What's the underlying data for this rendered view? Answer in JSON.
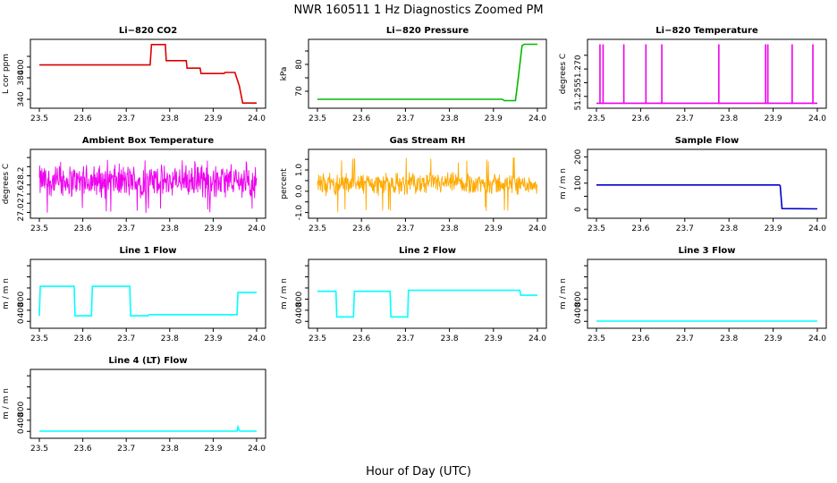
{
  "figure": {
    "title": "NWR  160511  1 Hz Diagnostics Zoomed PM",
    "xlabel": "Hour of Day (UTC)"
  },
  "chart_data": [
    {
      "type": "line",
      "title": "Li−820 CO2",
      "ylabel": "L cor ppm",
      "color": "#dd0000",
      "x": [
        23.5,
        23.6,
        23.7,
        23.8,
        23.9,
        24.0
      ],
      "xlim": [
        23.5,
        24.0
      ],
      "xticks": [
        "23.5",
        "23.6",
        "23.7",
        "23.8",
        "23.9",
        "24.0"
      ],
      "ylim": [
        330,
        445
      ],
      "yticks": [
        340,
        360,
        380,
        400,
        420
      ],
      "yticks_shown": [
        "340",
        "",
        "380",
        "400",
        ""
      ],
      "series": [
        {
          "x": [
            23.5,
            23.755,
            23.758,
            23.79,
            23.792,
            23.838,
            23.84,
            23.87,
            23.872,
            23.925,
            23.927,
            23.95,
            23.96,
            23.968,
            24.0
          ],
          "y": [
            404,
            404,
            442,
            442,
            412,
            412,
            398,
            398,
            388,
            388,
            390,
            390,
            365,
            333,
            333
          ]
        }
      ]
    },
    {
      "type": "line",
      "title": "Li−820 Pressure",
      "ylabel": "kPa",
      "color": "#00bb00",
      "xlim": [
        23.5,
        24.0
      ],
      "xticks": [
        "23.5",
        "23.6",
        "23.7",
        "23.8",
        "23.9",
        "24.0"
      ],
      "ylim": [
        65,
        88
      ],
      "yticks": [
        70,
        75,
        80,
        85
      ],
      "yticks_shown": [
        "70",
        "",
        "80",
        ""
      ],
      "series": [
        {
          "x": [
            23.5,
            23.92,
            23.925,
            23.95,
            23.955,
            23.965,
            23.97,
            24.0
          ],
          "y": [
            67,
            67,
            66.5,
            66.5,
            73,
            87,
            87.5,
            87.5
          ]
        }
      ]
    },
    {
      "type": "line",
      "title": "Li−820 Temperature",
      "ylabel": "degrees C",
      "color": "#ee00ee",
      "xlim": [
        23.5,
        24.0
      ],
      "xticks": [
        "23.5",
        "23.6",
        "23.7",
        "23.8",
        "23.9",
        "24.0"
      ],
      "ylim": [
        51.252,
        51.2745
      ],
      "yticks": [
        51.255,
        51.26,
        51.265,
        51.27
      ],
      "yticks_shown": [
        "51.255",
        "",
        "51.270",
        ""
      ],
      "baseline": 51.2525,
      "spikes": [
        23.508,
        23.515,
        23.562,
        23.612,
        23.648,
        23.777,
        23.883,
        23.888,
        23.943,
        23.99
      ],
      "spike_top": 51.274
    },
    {
      "type": "line",
      "title": "Ambient Box Temperature",
      "ylabel": "degrees C",
      "color": "#ee00ee",
      "xlim": [
        23.5,
        24.0
      ],
      "xticks": [
        "23.5",
        "23.6",
        "23.7",
        "23.8",
        "23.9",
        "24.0"
      ],
      "ylim": [
        26.95,
        28.3
      ],
      "yticks": [
        27.0,
        27.2,
        27.4,
        27.6,
        27.8,
        28.0,
        28.2
      ],
      "yticks_shown": [
        "27.0",
        "",
        "27.6",
        "",
        "28.2"
      ],
      "noise": {
        "center": 27.68,
        "amp": 0.38,
        "min": 26.98,
        "max": 28.15
      }
    },
    {
      "type": "line",
      "title": "Gas Stream RH",
      "ylabel": "percent",
      "color": "#ffaa00",
      "xlim": [
        23.5,
        24.0
      ],
      "xticks": [
        "23.5",
        "23.6",
        "23.7",
        "23.8",
        "23.9",
        "24.0"
      ],
      "ylim": [
        -1.1,
        1.8
      ],
      "yticks": [
        -1.0,
        -0.5,
        0.0,
        0.5,
        1.0,
        1.5
      ],
      "yticks_shown": [
        "-1.0",
        "",
        "0.0",
        "",
        "1.0",
        ""
      ],
      "noise": {
        "center": 0.35,
        "amp": 0.55,
        "min": -1.0,
        "max": 1.6
      }
    },
    {
      "type": "line",
      "title": "Sample Flow",
      "ylabel": "m / m n",
      "color": "#0000cc",
      "xlim": [
        23.5,
        24.0
      ],
      "xticks": [
        "23.5",
        "23.6",
        "23.7",
        "23.8",
        "23.9",
        "24.0"
      ],
      "ylim": [
        -20,
        215
      ],
      "yticks": [
        0,
        50,
        100,
        150,
        200
      ],
      "yticks_shown": [
        "0",
        "",
        "100",
        "",
        "200"
      ],
      "series": [
        {
          "x": [
            23.5,
            23.914,
            23.916,
            23.92,
            24.0
          ],
          "y": [
            93,
            93,
            90,
            3,
            2
          ]
        }
      ]
    },
    {
      "type": "line",
      "title": "Line 1 Flow",
      "ylabel": "m / m n",
      "color": "#00ffff",
      "xlim": [
        23.5,
        24.0
      ],
      "xticks": [
        "23.5",
        "23.6",
        "23.7",
        "23.8",
        "23.9",
        "24.0"
      ],
      "ylim": [
        -60,
        1050
      ],
      "yticks": [
        0,
        200,
        400,
        600,
        800,
        1000
      ],
      "yticks_shown": [
        "0",
        "400",
        "800"
      ],
      "series": [
        {
          "x": [
            23.5,
            23.502,
            23.58,
            23.582,
            23.62,
            23.622,
            23.708,
            23.71,
            23.75,
            23.752,
            23.955,
            23.957,
            24.0
          ],
          "y": [
            100,
            630,
            630,
            100,
            100,
            630,
            630,
            100,
            100,
            120,
            120,
            520,
            520
          ]
        }
      ]
    },
    {
      "type": "line",
      "title": "Line 2 Flow",
      "ylabel": "m / m n",
      "color": "#00ffff",
      "xlim": [
        23.5,
        24.0
      ],
      "xticks": [
        "23.5",
        "23.6",
        "23.7",
        "23.8",
        "23.9",
        "24.0"
      ],
      "ylim": [
        -60,
        1050
      ],
      "yticks": [
        0,
        200,
        400,
        600,
        800,
        1000
      ],
      "yticks_shown": [
        "0",
        "400",
        "800"
      ],
      "series": [
        {
          "x": [
            23.5,
            23.542,
            23.544,
            23.582,
            23.584,
            23.665,
            23.667,
            23.705,
            23.707,
            23.96,
            23.962,
            24.0
          ],
          "y": [
            540,
            540,
            80,
            80,
            540,
            540,
            80,
            80,
            560,
            560,
            470,
            470
          ]
        }
      ]
    },
    {
      "type": "line",
      "title": "Line 3 Flow",
      "ylabel": "m / m n",
      "color": "#00ffff",
      "xlim": [
        23.5,
        24.0
      ],
      "xticks": [
        "23.5",
        "23.6",
        "23.7",
        "23.8",
        "23.9",
        "24.0"
      ],
      "ylim": [
        -60,
        1050
      ],
      "yticks": [
        0,
        200,
        400,
        600,
        800,
        1000
      ],
      "yticks_shown": [
        "0",
        "400",
        "800"
      ],
      "series": [
        {
          "x": [
            23.5,
            24.0
          ],
          "y": [
            5,
            5
          ]
        }
      ]
    },
    {
      "type": "line",
      "title": "Line 4 (LT) Flow",
      "ylabel": "m / m n",
      "color": "#00ffff",
      "xlim": [
        23.5,
        24.0
      ],
      "xticks": [
        "23.5",
        "23.6",
        "23.7",
        "23.8",
        "23.9",
        "24.0"
      ],
      "ylim": [
        -60,
        1050
      ],
      "yticks": [
        0,
        200,
        400,
        600,
        800,
        1000
      ],
      "yticks_shown": [
        "0",
        "400",
        "800"
      ],
      "series": [
        {
          "x": [
            23.5,
            23.955,
            23.957,
            23.959,
            23.961,
            24.0
          ],
          "y": [
            5,
            5,
            80,
            30,
            5,
            5
          ]
        }
      ]
    }
  ]
}
